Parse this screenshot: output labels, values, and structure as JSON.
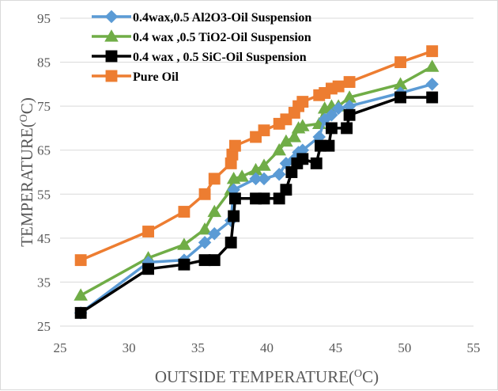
{
  "chart_data": {
    "type": "line",
    "xlabel": "OUTSIDE TEMPERATURE(",
    "xlabel_sup": "O",
    "xlabel_end": "C)",
    "ylabel": "TEMPERATURE(",
    "ylabel_sup": "O",
    "ylabel_end": "C)",
    "xlim": [
      25,
      55
    ],
    "ylim": [
      25,
      95
    ],
    "xticks": [
      "25",
      "30",
      "35",
      "40",
      "45",
      "50",
      "55"
    ],
    "yticks": [
      "25",
      "35",
      "45",
      "55",
      "65",
      "75",
      "85",
      "95"
    ],
    "grid": "horizontal",
    "legend": "top-left",
    "series": [
      {
        "name": "0.4wax,0.5 Al2O3-Oil Suspension",
        "color": "#5b9bd5",
        "marker": "diamond",
        "points": [
          [
            26.5,
            28
          ],
          [
            31.4,
            39.5
          ],
          [
            34,
            40
          ],
          [
            35.5,
            44
          ],
          [
            36.2,
            46
          ],
          [
            37.4,
            49
          ],
          [
            37.6,
            56
          ],
          [
            39.2,
            58.5
          ],
          [
            39.8,
            58.5
          ],
          [
            40.9,
            59.5
          ],
          [
            41.4,
            62
          ],
          [
            42,
            63
          ],
          [
            42.3,
            64.5
          ],
          [
            42.6,
            65
          ],
          [
            43.8,
            68
          ],
          [
            44.2,
            72
          ],
          [
            44.7,
            73
          ],
          [
            45.2,
            74.5
          ],
          [
            46,
            75
          ],
          [
            49.7,
            78
          ],
          [
            52,
            80
          ]
        ]
      },
      {
        "name": "0.4 wax ,0.5 TiO2-Oil Suspension",
        "color": "#70ad47",
        "marker": "triangle",
        "points": [
          [
            26.5,
            32
          ],
          [
            31.4,
            40.5
          ],
          [
            34,
            43.5
          ],
          [
            35.5,
            47
          ],
          [
            36.2,
            51
          ],
          [
            37.4,
            56
          ],
          [
            37.6,
            58.5
          ],
          [
            38.2,
            59
          ],
          [
            39.2,
            60.5
          ],
          [
            39.8,
            61.5
          ],
          [
            40.9,
            65
          ],
          [
            41.4,
            67
          ],
          [
            42,
            68
          ],
          [
            42.3,
            70
          ],
          [
            42.6,
            70.5
          ],
          [
            43.8,
            71
          ],
          [
            44.2,
            74.5
          ],
          [
            44.7,
            75
          ],
          [
            45.2,
            75
          ],
          [
            46,
            77
          ],
          [
            49.7,
            80
          ],
          [
            52,
            84
          ]
        ]
      },
      {
        "name": "0.4 wax , 0.5 SiC-Oil Suspension",
        "color": "#000000",
        "marker": "square",
        "points": [
          [
            26.5,
            28
          ],
          [
            31.4,
            38
          ],
          [
            34,
            39
          ],
          [
            35.5,
            40
          ],
          [
            36.2,
            40
          ],
          [
            37.4,
            44
          ],
          [
            37.6,
            50
          ],
          [
            37.7,
            54
          ],
          [
            39.2,
            54
          ],
          [
            39.8,
            54
          ],
          [
            40.9,
            54
          ],
          [
            41.4,
            56
          ],
          [
            41.8,
            60
          ],
          [
            42.2,
            62
          ],
          [
            42.6,
            63
          ],
          [
            43.6,
            62
          ],
          [
            43.9,
            66
          ],
          [
            44.5,
            66
          ],
          [
            44.7,
            70
          ],
          [
            45.8,
            70
          ],
          [
            46,
            73
          ],
          [
            49.7,
            77
          ],
          [
            52,
            77
          ]
        ]
      },
      {
        "name": "Pure Oil",
        "color": "#ed7d31",
        "marker": "square",
        "points": [
          [
            26.5,
            40
          ],
          [
            31.4,
            46.5
          ],
          [
            34,
            51
          ],
          [
            35.5,
            55
          ],
          [
            36.2,
            58.5
          ],
          [
            37.4,
            62
          ],
          [
            37.5,
            64
          ],
          [
            37.7,
            66
          ],
          [
            39.2,
            68
          ],
          [
            39.8,
            69.5
          ],
          [
            40.9,
            71
          ],
          [
            41.4,
            72
          ],
          [
            42,
            73.5
          ],
          [
            42.3,
            75
          ],
          [
            42.6,
            76
          ],
          [
            43.8,
            77.5
          ],
          [
            44.2,
            78
          ],
          [
            44.7,
            79
          ],
          [
            45.2,
            79.5
          ],
          [
            46,
            80.5
          ],
          [
            49.7,
            85
          ],
          [
            52,
            87.5
          ]
        ]
      }
    ]
  }
}
